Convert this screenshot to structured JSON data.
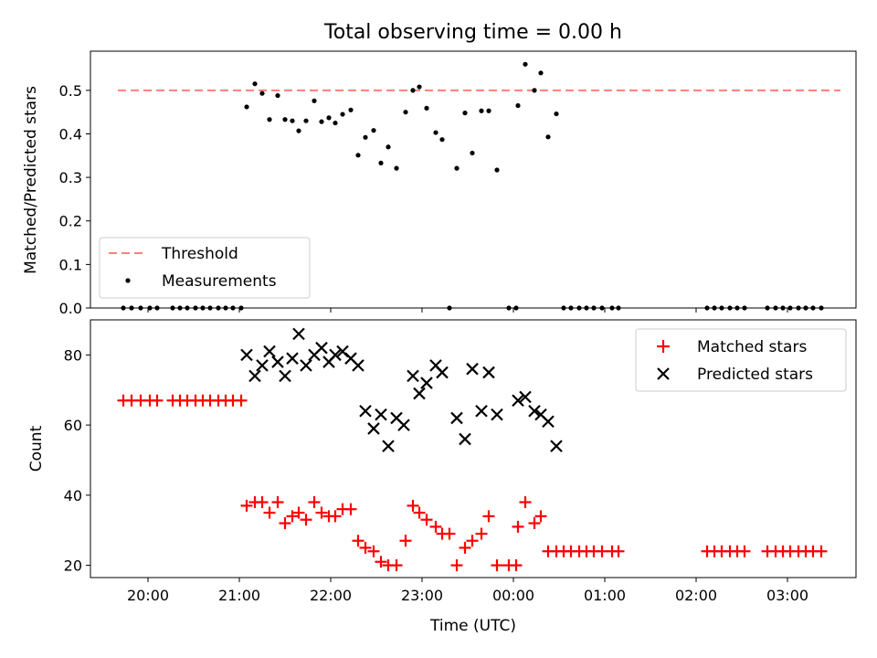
{
  "chart_data": [
    {
      "type": "scatter",
      "title": "Total observing time = 0.00 h",
      "ylabel": "Matched/Predicted stars",
      "xlabel": "",
      "ylim": [
        0,
        0.59
      ],
      "y_ticks": [
        "0.0",
        "0.1",
        "0.2",
        "0.3",
        "0.4",
        "0.5"
      ],
      "threshold": {
        "name": "Threshold",
        "value": 0.5,
        "x_start": -4.33,
        "x_end": 3.58,
        "color": "#ff7f7f",
        "style": "dashed"
      },
      "series": [
        {
          "name": "Measurements",
          "color": "#000000",
          "marker": "dot",
          "points": [
            [
              -4.27,
              0
            ],
            [
              -4.18,
              0
            ],
            [
              -4.08,
              0
            ],
            [
              -3.98,
              0
            ],
            [
              -3.9,
              0
            ],
            [
              -3.73,
              0
            ],
            [
              -3.65,
              0
            ],
            [
              -3.57,
              0
            ],
            [
              -3.48,
              0
            ],
            [
              -3.4,
              0
            ],
            [
              -3.32,
              0
            ],
            [
              -3.23,
              0
            ],
            [
              -3.15,
              0
            ],
            [
              -3.07,
              0
            ],
            [
              -2.98,
              0
            ],
            [
              -2.92,
              0.462
            ],
            [
              -2.83,
              0.515
            ],
            [
              -2.75,
              0.493
            ],
            [
              -2.67,
              0.433
            ],
            [
              -2.58,
              0.488
            ],
            [
              -2.5,
              0.433
            ],
            [
              -2.42,
              0.43
            ],
            [
              -2.35,
              0.407
            ],
            [
              -2.27,
              0.43
            ],
            [
              -2.18,
              0.476
            ],
            [
              -2.1,
              0.428
            ],
            [
              -2.02,
              0.437
            ],
            [
              -1.95,
              0.425
            ],
            [
              -1.87,
              0.445
            ],
            [
              -1.78,
              0.455
            ],
            [
              -1.7,
              0.351
            ],
            [
              -1.62,
              0.392
            ],
            [
              -1.53,
              0.408
            ],
            [
              -1.45,
              0.333
            ],
            [
              -1.37,
              0.37
            ],
            [
              -1.28,
              0.321
            ],
            [
              -1.18,
              0.45
            ],
            [
              -1.1,
              0.5
            ],
            [
              -1.03,
              0.508
            ],
            [
              -0.95,
              0.459
            ],
            [
              -0.85,
              0.403
            ],
            [
              -0.78,
              0.387
            ],
            [
              -0.7,
              0
            ],
            [
              -0.62,
              0.321
            ],
            [
              -0.53,
              0.448
            ],
            [
              -0.45,
              0.356
            ],
            [
              -0.35,
              0.453
            ],
            [
              -0.27,
              0.453
            ],
            [
              -0.18,
              0.317
            ],
            [
              -0.05,
              0
            ],
            [
              0.03,
              0
            ],
            [
              0.05,
              0.465
            ],
            [
              0.13,
              0.56
            ],
            [
              0.23,
              0.5
            ],
            [
              0.3,
              0.54
            ],
            [
              0.38,
              0.393
            ],
            [
              0.47,
              0.446
            ],
            [
              0.55,
              0
            ],
            [
              0.63,
              0
            ],
            [
              0.72,
              0
            ],
            [
              0.8,
              0
            ],
            [
              0.88,
              0
            ],
            [
              0.97,
              0
            ],
            [
              1.08,
              0
            ],
            [
              1.15,
              0
            ],
            [
              2.12,
              0
            ],
            [
              2.2,
              0
            ],
            [
              2.28,
              0
            ],
            [
              2.37,
              0
            ],
            [
              2.45,
              0
            ],
            [
              2.53,
              0
            ],
            [
              2.78,
              0
            ],
            [
              2.87,
              0
            ],
            [
              2.95,
              0
            ],
            [
              3.03,
              0
            ],
            [
              3.12,
              0
            ],
            [
              3.2,
              0
            ],
            [
              3.28,
              0
            ],
            [
              3.37,
              0
            ]
          ]
        }
      ],
      "legend": {
        "placement": "lower-left",
        "items": [
          "Threshold",
          "Measurements"
        ]
      }
    },
    {
      "type": "scatter",
      "title": "",
      "xlabel": "Time (UTC)",
      "ylabel": "Count",
      "ylim": [
        16.5,
        90
      ],
      "y_ticks": [
        "20",
        "40",
        "60",
        "80"
      ],
      "x_ticks": [
        "20:00",
        "21:00",
        "22:00",
        "23:00",
        "00:00",
        "01:00",
        "02:00",
        "03:00"
      ],
      "x_tick_values": [
        -4,
        -3,
        -2,
        -1,
        0,
        1,
        2,
        3
      ],
      "xlim": [
        -4.63,
        3.75
      ],
      "series": [
        {
          "name": "Matched stars",
          "color": "#ff0000",
          "marker": "plus",
          "points": [
            [
              -4.27,
              67
            ],
            [
              -4.18,
              67
            ],
            [
              -4.08,
              67
            ],
            [
              -3.98,
              67
            ],
            [
              -3.9,
              67
            ],
            [
              -3.73,
              67
            ],
            [
              -3.65,
              67
            ],
            [
              -3.57,
              67
            ],
            [
              -3.48,
              67
            ],
            [
              -3.4,
              67
            ],
            [
              -3.32,
              67
            ],
            [
              -3.23,
              67
            ],
            [
              -3.15,
              67
            ],
            [
              -3.07,
              67
            ],
            [
              -2.98,
              67
            ],
            [
              -2.92,
              37
            ],
            [
              -2.83,
              38
            ],
            [
              -2.75,
              38
            ],
            [
              -2.67,
              35
            ],
            [
              -2.58,
              38
            ],
            [
              -2.5,
              32
            ],
            [
              -2.42,
              34
            ],
            [
              -2.35,
              35
            ],
            [
              -2.27,
              33
            ],
            [
              -2.18,
              38
            ],
            [
              -2.1,
              35
            ],
            [
              -2.02,
              34
            ],
            [
              -1.95,
              34
            ],
            [
              -1.87,
              36
            ],
            [
              -1.78,
              36
            ],
            [
              -1.7,
              27
            ],
            [
              -1.62,
              25
            ],
            [
              -1.53,
              24
            ],
            [
              -1.45,
              21
            ],
            [
              -1.37,
              20
            ],
            [
              -1.28,
              20
            ],
            [
              -1.18,
              27
            ],
            [
              -1.1,
              37
            ],
            [
              -1.03,
              35
            ],
            [
              -0.95,
              33
            ],
            [
              -0.85,
              31
            ],
            [
              -0.78,
              29
            ],
            [
              -0.7,
              29
            ],
            [
              -0.62,
              20
            ],
            [
              -0.53,
              25
            ],
            [
              -0.45,
              27
            ],
            [
              -0.35,
              29
            ],
            [
              -0.27,
              34
            ],
            [
              -0.18,
              20
            ],
            [
              -0.05,
              20
            ],
            [
              0.03,
              20
            ],
            [
              0.05,
              31
            ],
            [
              0.13,
              38
            ],
            [
              0.23,
              32
            ],
            [
              0.3,
              34
            ],
            [
              0.38,
              24
            ],
            [
              0.47,
              24
            ],
            [
              0.55,
              24
            ],
            [
              0.63,
              24
            ],
            [
              0.72,
              24
            ],
            [
              0.8,
              24
            ],
            [
              0.88,
              24
            ],
            [
              0.97,
              24
            ],
            [
              1.08,
              24
            ],
            [
              1.15,
              24
            ],
            [
              2.12,
              24
            ],
            [
              2.2,
              24
            ],
            [
              2.28,
              24
            ],
            [
              2.37,
              24
            ],
            [
              2.45,
              24
            ],
            [
              2.53,
              24
            ],
            [
              2.78,
              24
            ],
            [
              2.87,
              24
            ],
            [
              2.95,
              24
            ],
            [
              3.03,
              24
            ],
            [
              3.12,
              24
            ],
            [
              3.2,
              24
            ],
            [
              3.28,
              24
            ],
            [
              3.37,
              24
            ]
          ]
        },
        {
          "name": "Predicted stars",
          "color": "#000000",
          "marker": "x",
          "points": [
            [
              -2.92,
              80
            ],
            [
              -2.83,
              74
            ],
            [
              -2.75,
              77
            ],
            [
              -2.67,
              81
            ],
            [
              -2.58,
              78
            ],
            [
              -2.5,
              74
            ],
            [
              -2.42,
              79
            ],
            [
              -2.35,
              86
            ],
            [
              -2.27,
              77
            ],
            [
              -2.18,
              80
            ],
            [
              -2.1,
              82
            ],
            [
              -2.02,
              78
            ],
            [
              -1.95,
              80
            ],
            [
              -1.87,
              81
            ],
            [
              -1.78,
              79
            ],
            [
              -1.7,
              77
            ],
            [
              -1.62,
              64
            ],
            [
              -1.53,
              59
            ],
            [
              -1.45,
              63
            ],
            [
              -1.37,
              54
            ],
            [
              -1.28,
              62
            ],
            [
              -1.2,
              60
            ],
            [
              -1.1,
              74
            ],
            [
              -1.03,
              69
            ],
            [
              -0.95,
              72
            ],
            [
              -0.85,
              77
            ],
            [
              -0.78,
              75
            ],
            [
              -0.62,
              62
            ],
            [
              -0.53,
              56
            ],
            [
              -0.45,
              76
            ],
            [
              -0.35,
              64
            ],
            [
              -0.27,
              75
            ],
            [
              -0.18,
              63
            ],
            [
              0.05,
              67
            ],
            [
              0.13,
              68
            ],
            [
              0.23,
              64
            ],
            [
              0.3,
              63
            ],
            [
              0.38,
              61
            ],
            [
              0.47,
              54
            ]
          ]
        }
      ],
      "legend": {
        "placement": "top-right",
        "items": [
          "Matched stars",
          "Predicted stars"
        ]
      }
    }
  ]
}
